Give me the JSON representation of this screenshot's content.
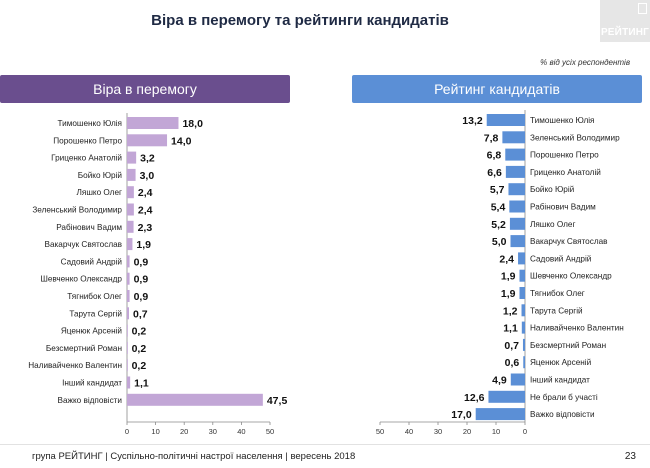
{
  "page": {
    "title": "Віра в перемогу та рейтинги кандидатів",
    "logo": "РЕЙТИНГ",
    "note": "% від усіх респондентів",
    "footer": "група РЕЙТИНГ | Суспільно-політичні настрої населення | вересень 2018",
    "page_number": "23"
  },
  "colors": {
    "left_panel": "#6a4e8e",
    "left_bar": "#c2a6d6",
    "right_panel": "#5b8fd6",
    "right_bar": "#5b8fd6"
  },
  "chart_data": [
    {
      "type": "bar",
      "orientation": "horizontal",
      "title": "Віра в перемогу",
      "categories": [
        "Тимошенко Юлія",
        "Порошенко Петро",
        "Гриценко Анатолій",
        "Бойко Юрій",
        "Ляшко Олег",
        "Зеленський Володимир",
        "Рабінович Вадим",
        "Вакарчук Святослав",
        "Садовий Андрій",
        "Шевченко Олександр",
        "Тягнибок Олег",
        "Тарута Сергій",
        "Яценюк Арсеній",
        "Безсмертний Роман",
        "Наливайченко Валентин",
        "Інший кандидат",
        "Важко відповісти"
      ],
      "values": [
        18.0,
        14.0,
        3.2,
        3.0,
        2.4,
        2.4,
        2.3,
        1.9,
        0.9,
        0.9,
        0.9,
        0.7,
        0.2,
        0.2,
        0.2,
        1.1,
        47.5
      ],
      "value_labels": [
        "18,0",
        "14,0",
        "3,2",
        "3,0",
        "2,4",
        "2,4",
        "2,3",
        "1,9",
        "0,9",
        "0,9",
        "0,9",
        "0,7",
        "0,2",
        "0,2",
        "0,2",
        "1,1",
        "47,5"
      ],
      "xlim": [
        0,
        50
      ],
      "ticks": [
        "0",
        "10",
        "20",
        "30",
        "40",
        "50"
      ],
      "grid": false,
      "bar_direction": "left-to-right"
    },
    {
      "type": "bar",
      "orientation": "horizontal",
      "title": "Рейтинг кандидатів",
      "categories": [
        "Тимошенко Юлія",
        "Зеленський Володимир",
        "Порошенко Петро",
        "Гриценко Анатолій",
        "Бойко Юрій",
        "Рабінович Вадим",
        "Ляшко Олег",
        "Вакарчук Святослав",
        "Садовий Андрій",
        "Шевченко Олександр",
        "Тягнибок Олег",
        "Тарута Сергій",
        "Наливайченко Валентин",
        "Безсмертний Роман",
        "Яценюк Арсеній",
        "Інший кандидат",
        "Не брали б участі",
        "Важко відповісти"
      ],
      "values": [
        13.2,
        7.8,
        6.8,
        6.6,
        5.7,
        5.4,
        5.2,
        5.0,
        2.4,
        1.9,
        1.9,
        1.2,
        1.1,
        0.7,
        0.6,
        4.9,
        12.6,
        17.0
      ],
      "value_labels": [
        "13,2",
        "7,8",
        "6,8",
        "6,6",
        "5,7",
        "5,4",
        "5,2",
        "5,0",
        "2,4",
        "1,9",
        "1,9",
        "1,2",
        "1,1",
        "0,7",
        "0,6",
        "4,9",
        "12,6",
        "17,0"
      ],
      "xlim": [
        50,
        0
      ],
      "ticks": [
        "50",
        "40",
        "30",
        "20",
        "10",
        "0"
      ],
      "grid": false,
      "bar_direction": "right-to-left"
    }
  ]
}
